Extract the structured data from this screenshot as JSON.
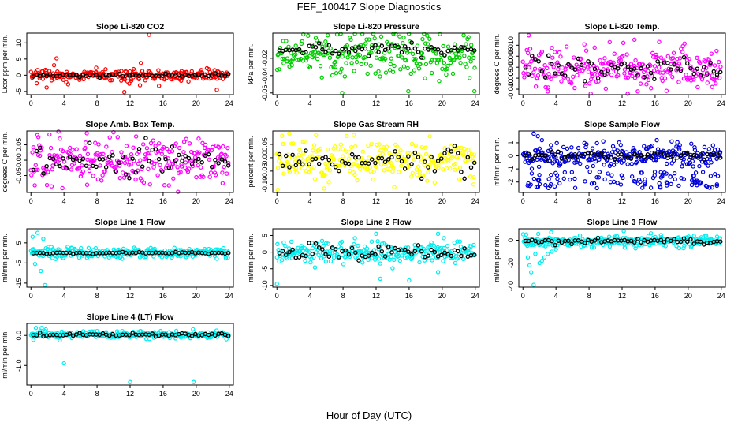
{
  "figure": {
    "title": "FEF_100417  Slope Diagnostics",
    "xlabel": "Hour of Day (UTC)"
  },
  "chart_data": [
    {
      "type": "scatter",
      "title": "Slope Li-820 CO2",
      "ylabel": "Licor ppm per min.",
      "color": "#ff0000",
      "xlim": [
        -0.5,
        24.5
      ],
      "ylim": [
        -6,
        13
      ],
      "xticks": [
        0,
        4,
        8,
        12,
        16,
        20,
        24
      ],
      "yticks": [
        -5,
        0,
        5,
        10
      ],
      "ytick_labels": [
        "-5",
        "0",
        "5",
        "10"
      ],
      "center": 0,
      "spread": 0.9,
      "mean_spread": 0.25,
      "outliers": [
        [
          0.7,
          -2.5
        ],
        [
          1.9,
          -3.8
        ],
        [
          2.8,
          3.1
        ],
        [
          3.1,
          5.2
        ],
        [
          4.5,
          -2.8
        ],
        [
          7.9,
          2.3
        ],
        [
          11.3,
          -5.2
        ],
        [
          11.9,
          -2.6
        ],
        [
          13.2,
          -3.1
        ],
        [
          13.3,
          3.8
        ],
        [
          14.3,
          12.5
        ],
        [
          15.5,
          -3.3
        ],
        [
          22.5,
          -4.5
        ]
      ]
    },
    {
      "type": "scatter",
      "title": "Slope Li-820 Pressure",
      "ylabel": "kPa per min.",
      "color": "#00cc00",
      "xlim": [
        -0.5,
        24.5
      ],
      "ylim": [
        -0.062,
        0.009
      ],
      "xticks": [
        0,
        4,
        8,
        12,
        16,
        20,
        24
      ],
      "yticks": [
        -0.06,
        -0.04,
        -0.02
      ],
      "ytick_labels": [
        "-0.06",
        "-0.04",
        "-0.02"
      ],
      "center": -0.01,
      "spread": 0.011,
      "mean_spread": 0.004,
      "outliers": [
        [
          7.9,
          -0.06
        ],
        [
          15.9,
          -0.058
        ],
        [
          23.9,
          -0.058
        ]
      ]
    },
    {
      "type": "scatter",
      "title": "Slope Li-820 Temp.",
      "ylabel": "degrees C per min.",
      "color": "#ff00ff",
      "xlim": [
        -0.5,
        24.5
      ],
      "ylim": [
        -0.0125,
        0.0155
      ],
      "xticks": [
        0,
        4,
        8,
        12,
        16,
        20,
        24
      ],
      "yticks": [
        -0.01,
        -0.005,
        0,
        0.005,
        0.01
      ],
      "ytick_labels": [
        "-0.010",
        "-0.005",
        "0.000",
        "0.005",
        "0.010"
      ],
      "center": -0.0005,
      "spread": 0.0048,
      "mean_spread": 0.0025,
      "outliers": [
        [
          0.7,
          0.0145
        ],
        [
          3.0,
          -0.011
        ],
        [
          8.2,
          -0.012
        ],
        [
          13.5,
          0.0125
        ],
        [
          13.9,
          -0.011
        ],
        [
          22.9,
          -0.009
        ]
      ]
    },
    {
      "type": "scatter",
      "title": "Slope Amb. Box Temp.",
      "ylabel": "degrees C per min.",
      "color": "#ff00ff",
      "xlim": [
        -0.5,
        24.5
      ],
      "ylim": [
        -0.105,
        0.095
      ],
      "xticks": [
        0,
        4,
        8,
        12,
        16,
        20,
        24
      ],
      "yticks": [
        -0.05,
        0,
        0.05
      ],
      "ytick_labels": [
        "-0.05",
        "0.00",
        "0.05"
      ],
      "center": 0,
      "spread": 0.036,
      "mean_spread": 0.022,
      "outliers": [
        [
          0.9,
          0.075
        ],
        [
          2.5,
          -0.085
        ],
        [
          3.5,
          0.07
        ],
        [
          6.8,
          -0.08
        ],
        [
          10.5,
          0.075
        ],
        [
          16.7,
          -0.082
        ],
        [
          20.3,
          0.07
        ],
        [
          23.2,
          -0.075
        ]
      ]
    },
    {
      "type": "scatter",
      "title": "Slope Gas Stream RH",
      "ylabel": "percent per min.",
      "color": "#ffff00",
      "xlim": [
        -0.5,
        24.5
      ],
      "ylim": [
        -0.13,
        0.1
      ],
      "xticks": [
        0,
        4,
        8,
        12,
        16,
        20,
        24
      ],
      "yticks": [
        -0.1,
        -0.05,
        0,
        0.05
      ],
      "ytick_labels": [
        "-0.10",
        "-0.05",
        "0.00",
        "0.05"
      ],
      "center": -0.01,
      "spread": 0.035,
      "mean_spread": 0.025,
      "outliers": [
        [
          0.1,
          -0.12
        ],
        [
          1.5,
          0.09
        ],
        [
          5.7,
          -0.115
        ],
        [
          9.3,
          0.085
        ],
        [
          14.2,
          -0.11
        ],
        [
          18.5,
          0.08
        ],
        [
          23.8,
          -0.1
        ]
      ]
    },
    {
      "type": "scatter",
      "title": "Slope Sample Flow",
      "ylabel": "ml/min per min.",
      "color": "#0000dd",
      "xlim": [
        -0.5,
        24.5
      ],
      "ylim": [
        -2.8,
        1.9
      ],
      "xticks": [
        0,
        4,
        8,
        12,
        16,
        20,
        24
      ],
      "yticks": [
        -2,
        -1,
        0,
        1
      ],
      "ytick_labels": [
        "-2",
        "-1",
        "0",
        "1"
      ],
      "center": 0,
      "spread": 0.45,
      "mean_spread": 0.15,
      "band": {
        "from": -1.2,
        "to": -2.5,
        "count": 110
      },
      "outliers": [
        [
          1.3,
          1.7
        ],
        [
          1.8,
          1.5
        ],
        [
          2.3,
          1.2
        ],
        [
          16.2,
          1.2
        ],
        [
          18.0,
          1.1
        ]
      ]
    },
    {
      "type": "scatter",
      "title": "Slope Line 1 Flow",
      "ylabel": "ml/min per min.",
      "color": "#00eeee",
      "xlim": [
        -0.5,
        24.5
      ],
      "ylim": [
        -17,
        12
      ],
      "xticks": [
        0,
        4,
        8,
        12,
        16,
        20,
        24
      ],
      "yticks": [
        -15,
        -5,
        5
      ],
      "ytick_labels": [
        "-15",
        "-5",
        "5"
      ],
      "center": 0,
      "spread": 1.2,
      "mean_spread": 0.2,
      "outliers": [
        [
          0.2,
          8
        ],
        [
          0.5,
          -5.5
        ],
        [
          0.8,
          10
        ],
        [
          1.2,
          -9
        ],
        [
          1.5,
          7
        ],
        [
          1.7,
          -16
        ],
        [
          2.1,
          3
        ],
        [
          2.6,
          -2.5
        ],
        [
          3.0,
          -3
        ],
        [
          12.5,
          2.6
        ],
        [
          14.5,
          2.5
        ]
      ]
    },
    {
      "type": "scatter",
      "title": "Slope Line 2 Flow",
      "ylabel": "ml/min per min.",
      "color": "#00eeee",
      "xlim": [
        -0.5,
        24.5
      ],
      "ylim": [
        -10.5,
        7
      ],
      "xticks": [
        0,
        4,
        8,
        12,
        16,
        20,
        24
      ],
      "yticks": [
        -10,
        -5,
        0,
        5
      ],
      "ytick_labels": [
        "-10",
        "-5",
        "0",
        "5"
      ],
      "center": 0,
      "spread": 1.6,
      "mean_spread": 1.2,
      "outliers": [
        [
          0.0,
          -9.5
        ],
        [
          12.0,
          5.5
        ],
        [
          12.5,
          -8
        ],
        [
          16.0,
          -8.5
        ],
        [
          19.5,
          -6
        ],
        [
          19.5,
          5.5
        ],
        [
          20.2,
          4.2
        ]
      ]
    },
    {
      "type": "scatter",
      "title": "Slope Line 3 Flow",
      "ylabel": "ml/min per min.",
      "color": "#00eeee",
      "xlim": [
        -0.5,
        24.5
      ],
      "ylim": [
        -41,
        10
      ],
      "xticks": [
        0,
        4,
        8,
        12,
        16,
        20,
        24
      ],
      "yticks": [
        -40,
        -20,
        0
      ],
      "ytick_labels": [
        "-40",
        "-20",
        "0"
      ],
      "center": -1,
      "spread": 2.5,
      "mean_spread": 1.2,
      "outliers": [
        [
          0.4,
          5
        ],
        [
          0.6,
          -15
        ],
        [
          0.8,
          -22
        ],
        [
          1.0,
          -28
        ],
        [
          1.3,
          -39
        ],
        [
          1.5,
          -12
        ],
        [
          2.0,
          -20
        ],
        [
          2.3,
          -18
        ],
        [
          2.6,
          -15
        ],
        [
          3.0,
          -12
        ],
        [
          3.5,
          -10
        ],
        [
          4.0,
          -8
        ],
        [
          12.2,
          8
        ],
        [
          15.5,
          6
        ],
        [
          16.7,
          4.5
        ]
      ]
    },
    {
      "type": "scatter",
      "title": "Slope Line 4 (LT) Flow",
      "ylabel": "ml/min per min.",
      "color": "#00eeee",
      "xlim": [
        -0.5,
        24.5
      ],
      "ylim": [
        -1.65,
        0.4
      ],
      "xticks": [
        0,
        4,
        8,
        12,
        16,
        20,
        24
      ],
      "yticks": [
        -1,
        0
      ],
      "ytick_labels": [
        "-1.0",
        "0.0"
      ],
      "center": 0.03,
      "spread": 0.06,
      "mean_spread": 0.03,
      "outliers": [
        [
          0.3,
          -0.15
        ],
        [
          0.6,
          0.25
        ],
        [
          1.3,
          0.25
        ],
        [
          1.8,
          0.2
        ],
        [
          4.0,
          -0.93
        ],
        [
          12.0,
          -1.55
        ],
        [
          19.7,
          -1.55
        ]
      ]
    }
  ]
}
